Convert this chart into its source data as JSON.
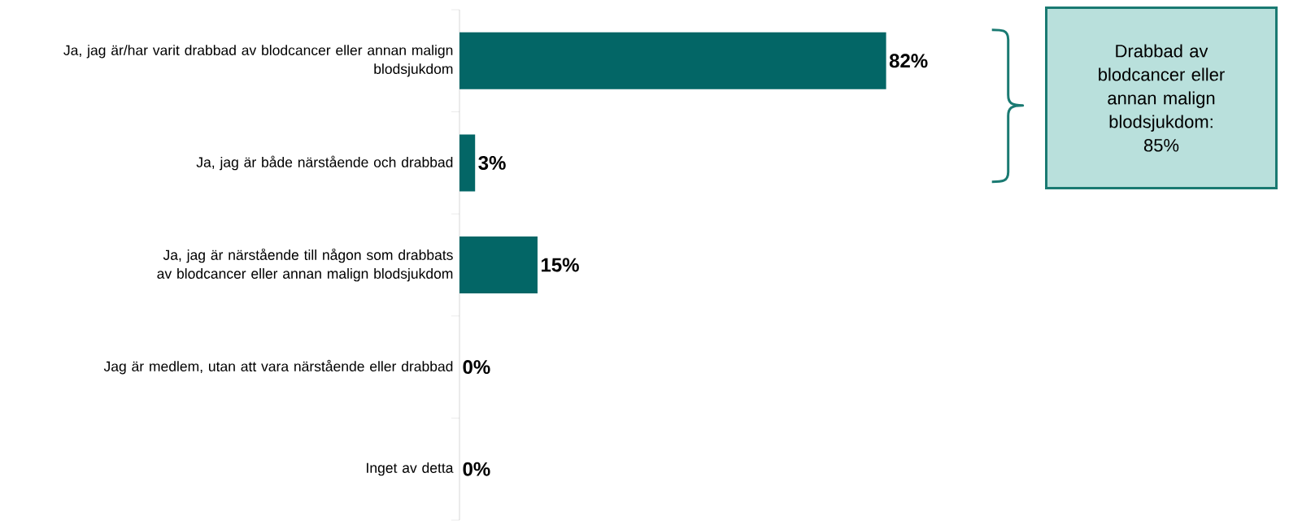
{
  "chart_data": {
    "type": "bar",
    "orientation": "horizontal",
    "categories": [
      "Ja, jag är/har varit drabbad av blodcancer eller annan malign blodsjukdom",
      "Ja, jag är både närstående och drabbad",
      "Ja, jag är närstående till någon som drabbats av blodcancer eller annan malign blodsjukdom",
      "Jag är medlem, utan att vara närstående eller drabbad",
      "Inget av detta"
    ],
    "values": [
      82,
      3,
      15,
      0,
      0
    ],
    "value_labels": [
      "82%",
      "3%",
      "15%",
      "0%",
      "0%"
    ],
    "color": "#036666",
    "tick_labels": "y",
    "annotations": [
      "Drabbad av blodcancer eller annan malign blodsjukdom: 85%"
    ]
  }
}
